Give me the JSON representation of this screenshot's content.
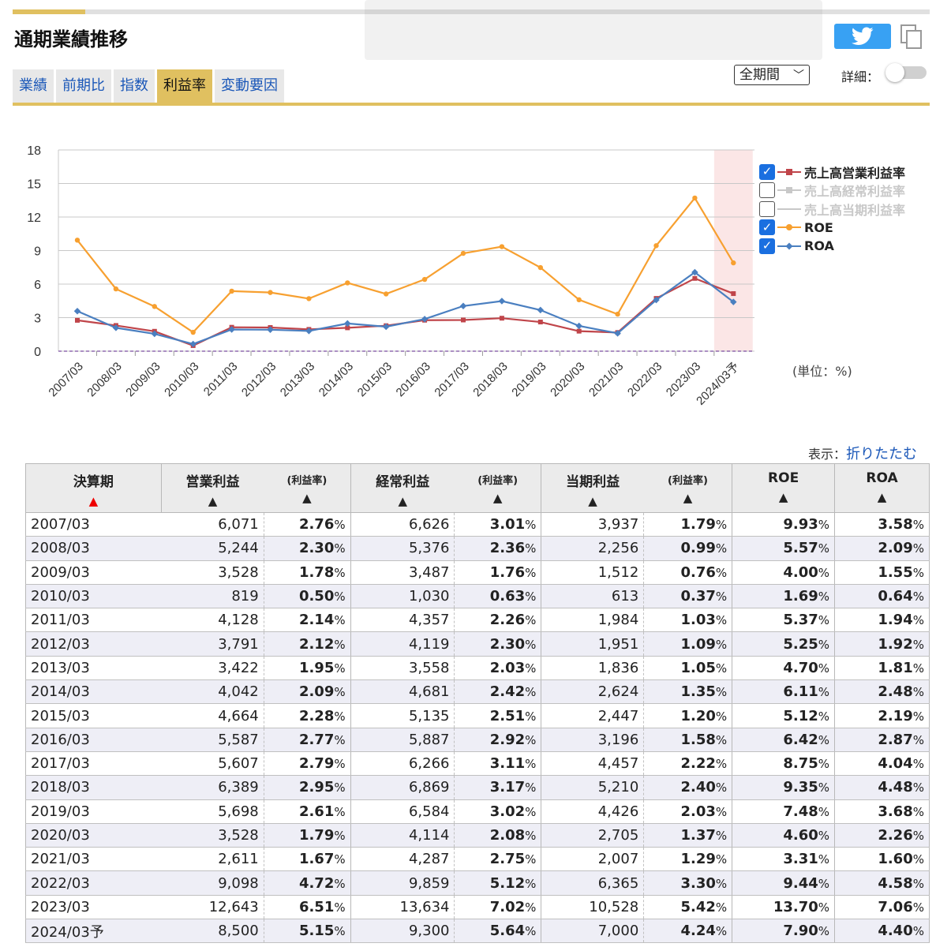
{
  "overlay": {
    "text": ""
  },
  "title": "通期業績推移",
  "tabs": [
    {
      "label": "業績",
      "active": false
    },
    {
      "label": "前期比",
      "active": false
    },
    {
      "label": "指数",
      "active": false
    },
    {
      "label": "利益率",
      "active": true
    },
    {
      "label": "変動要因",
      "active": false
    }
  ],
  "controls": {
    "period_selected": "全期間",
    "detail_label": "詳細：",
    "detail_on": false
  },
  "icons": {
    "tweet": "twitter-bird-icon",
    "copy": "copy-icon"
  },
  "colors": {
    "accent": "#e0c060",
    "operating": "#c0454a",
    "ordinary": "#c8c8c8",
    "net": "#c8c8c8",
    "roe": "#f7a030",
    "roa": "#4a7fc0",
    "forecast_band": "#fbe6e6"
  },
  "chart_data": {
    "type": "line",
    "categories": [
      "2007/03",
      "2008/03",
      "2009/03",
      "2010/03",
      "2011/03",
      "2012/03",
      "2013/03",
      "2014/03",
      "2015/03",
      "2016/03",
      "2017/03",
      "2018/03",
      "2019/03",
      "2020/03",
      "2021/03",
      "2022/03",
      "2023/03",
      "2024/03予"
    ],
    "ylim": [
      0,
      18
    ],
    "yticks": [
      0,
      3,
      6,
      9,
      12,
      15,
      18
    ],
    "grid": true,
    "legend_position": "right",
    "forecast_highlight_last": true,
    "unit_note": "(単位：%)",
    "series": [
      {
        "name": "売上高営業利益率",
        "checked": true,
        "color_key": "operating",
        "marker": "square",
        "values": [
          2.76,
          2.3,
          1.78,
          0.5,
          2.14,
          2.12,
          1.95,
          2.09,
          2.28,
          2.77,
          2.79,
          2.95,
          2.61,
          1.79,
          1.67,
          4.72,
          6.51,
          5.15
        ]
      },
      {
        "name": "売上高経常利益率",
        "checked": false,
        "color_key": "ordinary",
        "marker": "triangle",
        "values": [
          3.01,
          2.36,
          1.76,
          0.63,
          2.26,
          2.3,
          2.03,
          2.42,
          2.51,
          2.92,
          3.11,
          3.17,
          3.02,
          2.08,
          2.75,
          5.12,
          7.02,
          5.64
        ]
      },
      {
        "name": "売上高当期利益率",
        "checked": false,
        "color_key": "net",
        "marker": "none",
        "values": [
          1.79,
          0.99,
          0.76,
          0.37,
          1.03,
          1.09,
          1.05,
          1.35,
          1.2,
          1.58,
          2.22,
          2.4,
          2.03,
          1.37,
          1.29,
          3.3,
          5.42,
          4.24
        ]
      },
      {
        "name": "ROE",
        "checked": true,
        "color_key": "roe",
        "marker": "circle",
        "values": [
          9.93,
          5.57,
          4.0,
          1.69,
          5.37,
          5.25,
          4.7,
          6.11,
          5.12,
          6.42,
          8.75,
          9.35,
          7.48,
          4.6,
          3.31,
          9.44,
          13.7,
          7.9
        ]
      },
      {
        "name": "ROA",
        "checked": true,
        "color_key": "roa",
        "marker": "diamond",
        "values": [
          3.58,
          2.09,
          1.55,
          0.64,
          1.94,
          1.92,
          1.81,
          2.48,
          2.19,
          2.87,
          4.04,
          4.48,
          3.68,
          2.26,
          1.6,
          4.58,
          7.06,
          4.4
        ]
      }
    ]
  },
  "display_toggle": {
    "label": "表示：",
    "link": "折りたたむ"
  },
  "table": {
    "headers": {
      "period": "決算期",
      "operating": "営業利益",
      "ordinary": "経常利益",
      "net": "当期利益",
      "rate": "(利益率)",
      "roe": "ROE",
      "roa": "ROA",
      "sort_arrow": "▲"
    },
    "pct": "%",
    "rows": [
      [
        "2007/03",
        "6,071",
        "2.76",
        "6,626",
        "3.01",
        "3,937",
        "1.79",
        "9.93",
        "3.58"
      ],
      [
        "2008/03",
        "5,244",
        "2.30",
        "5,376",
        "2.36",
        "2,256",
        "0.99",
        "5.57",
        "2.09"
      ],
      [
        "2009/03",
        "3,528",
        "1.78",
        "3,487",
        "1.76",
        "1,512",
        "0.76",
        "4.00",
        "1.55"
      ],
      [
        "2010/03",
        "819",
        "0.50",
        "1,030",
        "0.63",
        "613",
        "0.37",
        "1.69",
        "0.64"
      ],
      [
        "2011/03",
        "4,128",
        "2.14",
        "4,357",
        "2.26",
        "1,984",
        "1.03",
        "5.37",
        "1.94"
      ],
      [
        "2012/03",
        "3,791",
        "2.12",
        "4,119",
        "2.30",
        "1,951",
        "1.09",
        "5.25",
        "1.92"
      ],
      [
        "2013/03",
        "3,422",
        "1.95",
        "3,558",
        "2.03",
        "1,836",
        "1.05",
        "4.70",
        "1.81"
      ],
      [
        "2014/03",
        "4,042",
        "2.09",
        "4,681",
        "2.42",
        "2,624",
        "1.35",
        "6.11",
        "2.48"
      ],
      [
        "2015/03",
        "4,664",
        "2.28",
        "5,135",
        "2.51",
        "2,447",
        "1.20",
        "5.12",
        "2.19"
      ],
      [
        "2016/03",
        "5,587",
        "2.77",
        "5,887",
        "2.92",
        "3,196",
        "1.58",
        "6.42",
        "2.87"
      ],
      [
        "2017/03",
        "5,607",
        "2.79",
        "6,266",
        "3.11",
        "4,457",
        "2.22",
        "8.75",
        "4.04"
      ],
      [
        "2018/03",
        "6,389",
        "2.95",
        "6,869",
        "3.17",
        "5,210",
        "2.40",
        "9.35",
        "4.48"
      ],
      [
        "2019/03",
        "5,698",
        "2.61",
        "6,584",
        "3.02",
        "4,426",
        "2.03",
        "7.48",
        "3.68"
      ],
      [
        "2020/03",
        "3,528",
        "1.79",
        "4,114",
        "2.08",
        "2,705",
        "1.37",
        "4.60",
        "2.26"
      ],
      [
        "2021/03",
        "2,611",
        "1.67",
        "4,287",
        "2.75",
        "2,007",
        "1.29",
        "3.31",
        "1.60"
      ],
      [
        "2022/03",
        "9,098",
        "4.72",
        "9,859",
        "5.12",
        "6,365",
        "3.30",
        "9.44",
        "4.58"
      ],
      [
        "2023/03",
        "12,643",
        "6.51",
        "13,634",
        "7.02",
        "10,528",
        "5.42",
        "13.70",
        "7.06"
      ],
      [
        "2024/03予",
        "8,500",
        "5.15",
        "9,300",
        "5.64",
        "7,000",
        "4.24",
        "7.90",
        "4.40"
      ]
    ]
  }
}
